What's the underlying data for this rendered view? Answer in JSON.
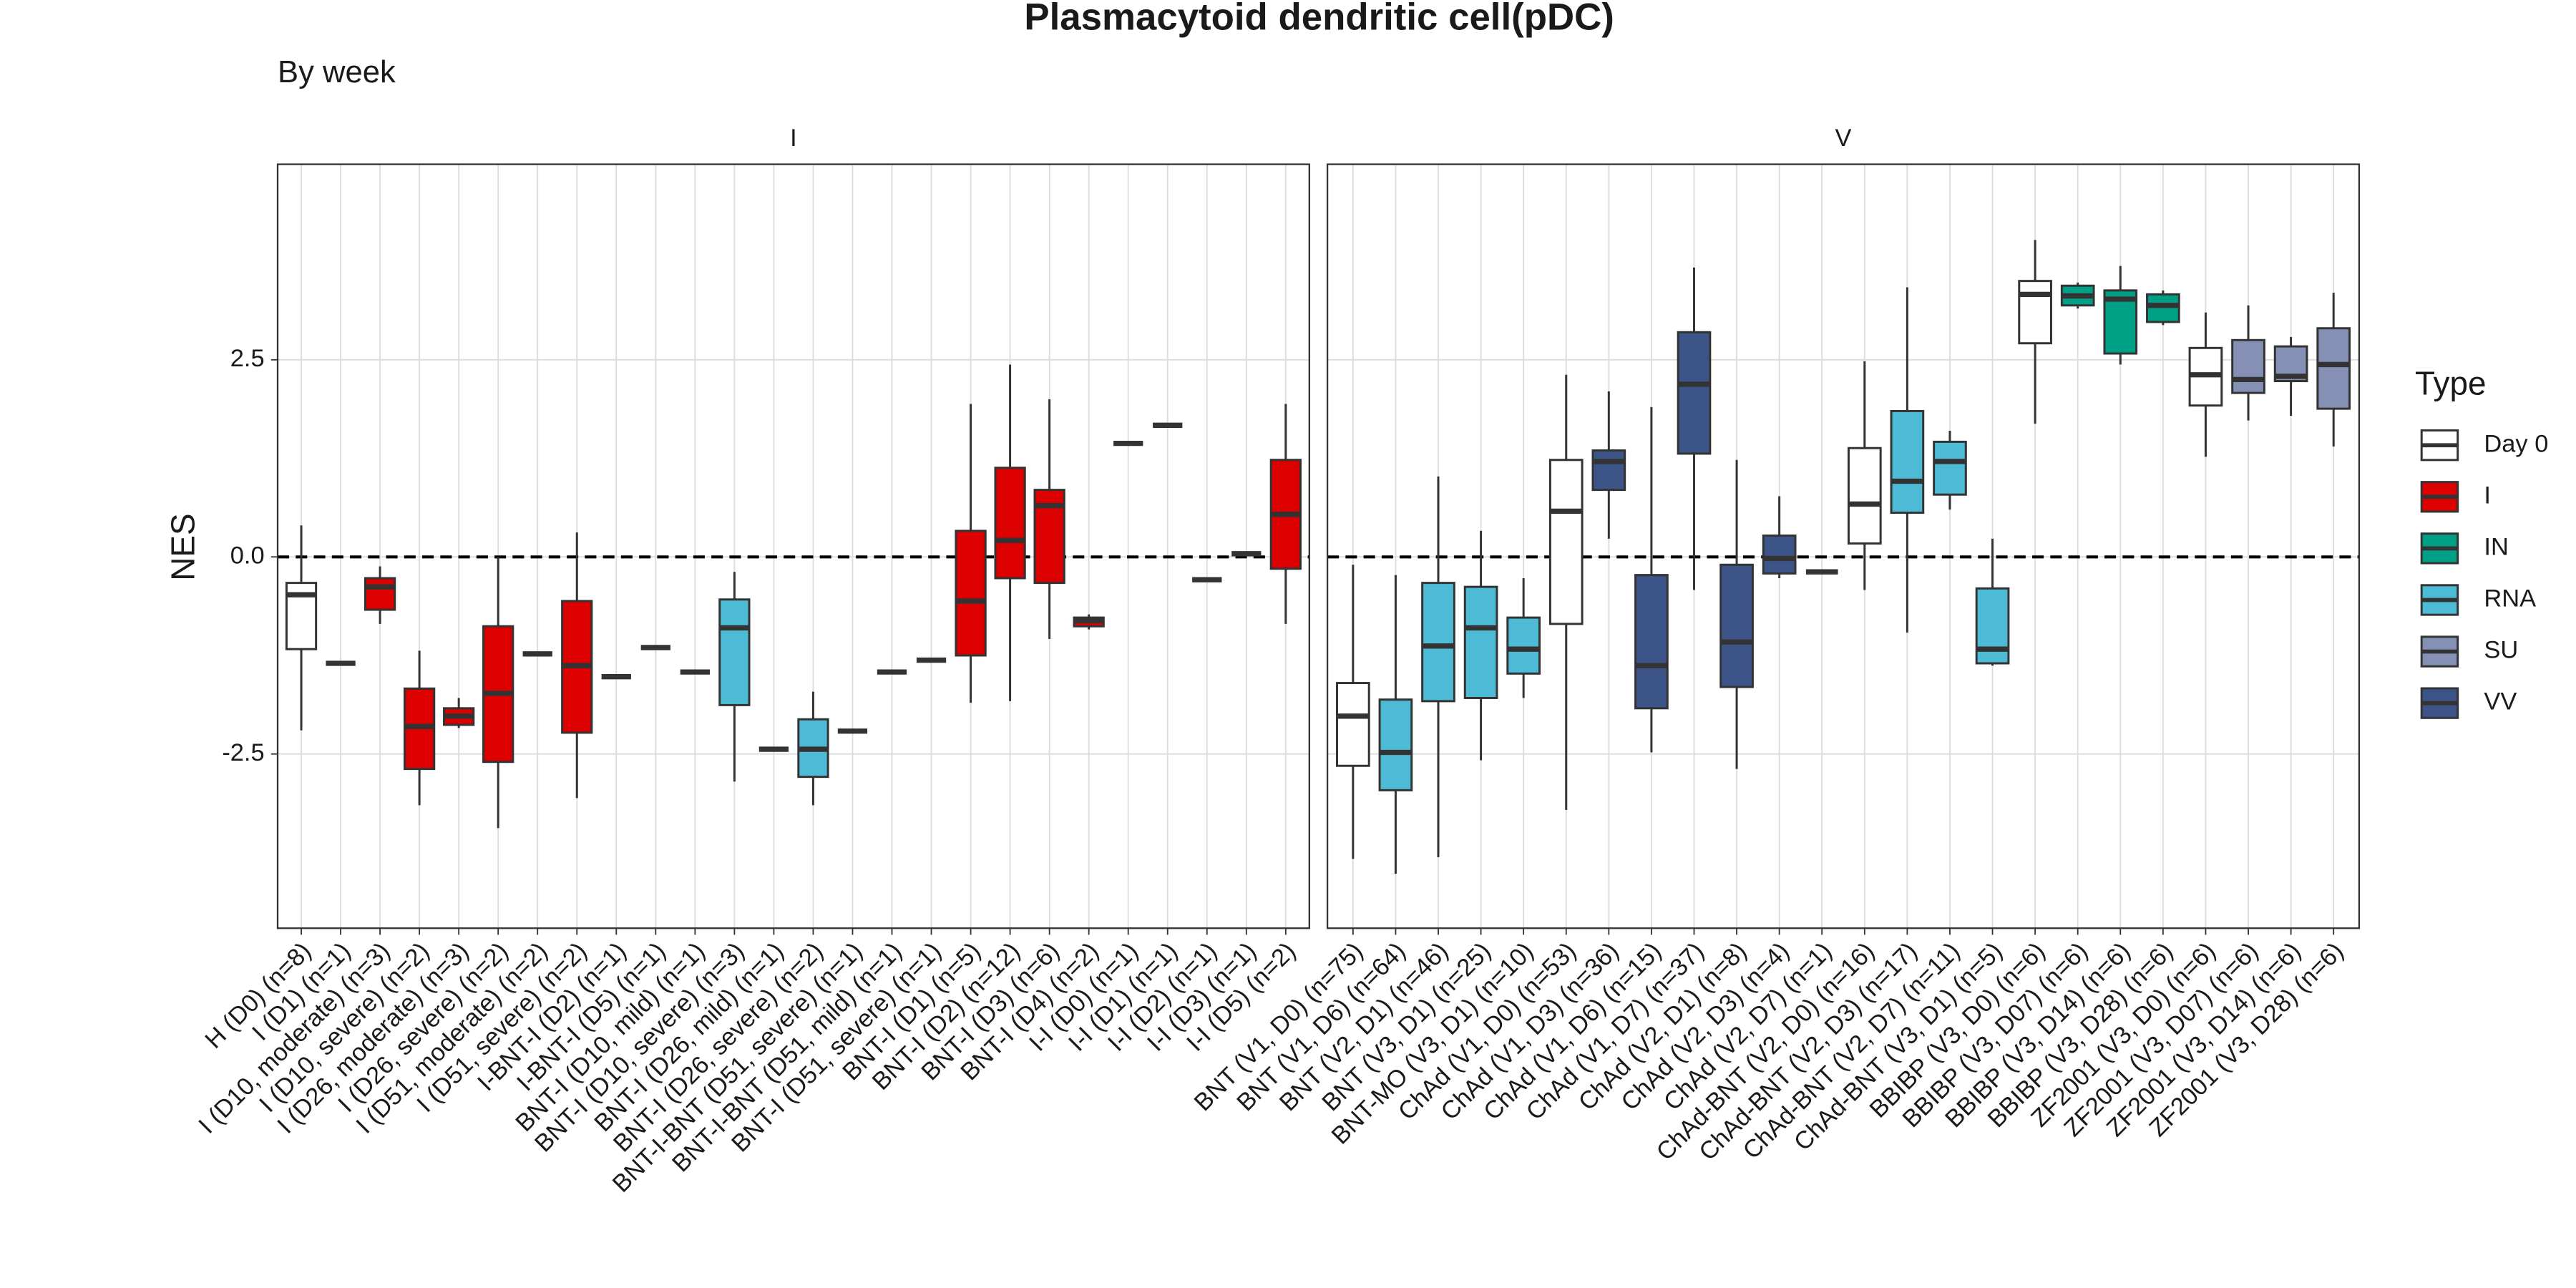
{
  "chart_data": {
    "type": "boxplot",
    "title": "Plasmacytoid dendritic cell(pDC)",
    "subtitle": "By week",
    "y_label": "NES",
    "legend_title": "Type",
    "legend": [
      {
        "name": "Day 0",
        "color": "#ffffff"
      },
      {
        "name": "I",
        "color": "#DC0000"
      },
      {
        "name": "IN",
        "color": "#00A087"
      },
      {
        "name": "RNA",
        "color": "#4DBBD5"
      },
      {
        "name": "SU",
        "color": "#8491B4"
      },
      {
        "name": "VV",
        "color": "#3C5488"
      }
    ],
    "ylim": [
      -4.71,
      4.98
    ],
    "yticks": [
      {
        "value": -2.5,
        "label": "-2.5"
      },
      {
        "value": 0,
        "label": "0.0"
      },
      {
        "value": 2.5,
        "label": "2.5"
      }
    ],
    "grid": true,
    "hline": 0,
    "facets": [
      {
        "label": "I",
        "categories": [
          "H (D0) (n=8)",
          "I (D1) (n=1)",
          "I (D10, moderate) (n=3)",
          "I (D10, severe) (n=2)",
          "I (D26, moderate) (n=3)",
          "I (D26, severe) (n=2)",
          "I (D51, moderate) (n=2)",
          "I (D51, severe) (n=2)",
          "I-BNT-I (D2) (n=1)",
          "I-BNT-I (D5) (n=1)",
          "BNT-I (D10, mild) (n=1)",
          "BNT-I (D10, severe) (n=3)",
          "BNT-I (D26, mild) (n=1)",
          "BNT-I (D26, severe) (n=2)",
          "BNT-I-BNT (D51, severe) (n=1)",
          "BNT-I-BNT (D51, mild) (n=1)",
          "BNT-I (D51, severe) (n=1)",
          "BNT-I (D1) (n=5)",
          "BNT-I (D2) (n=12)",
          "BNT-I (D3) (n=6)",
          "BNT-I (D4) (n=2)",
          "I-I (D0) (n=1)",
          "I-I (D1) (n=1)",
          "I-I (D2) (n=1)",
          "I-I (D3) (n=1)",
          "I-I (D5) (n=2)"
        ],
        "types": [
          "Day 0",
          "I",
          "I",
          "I",
          "I",
          "I",
          "I",
          "I",
          "I",
          "I",
          "RNA",
          "RNA",
          "RNA",
          "RNA",
          "RNA",
          "RNA",
          "RNA",
          "I",
          "I",
          "I",
          "I",
          "I",
          "I",
          "I",
          "I",
          "I"
        ],
        "boxes": [
          [
            -2.2,
            -1.17,
            -0.48,
            -0.33,
            0.4
          ],
          [
            -1.35,
            -1.35,
            -1.35,
            -1.35,
            -1.35
          ],
          [
            -0.85,
            -0.67,
            -0.38,
            -0.27,
            -0.12
          ],
          [
            -3.15,
            -2.69,
            -2.15,
            -1.67,
            -1.19
          ],
          [
            -2.17,
            -2.13,
            -2.02,
            -1.92,
            -1.79
          ],
          [
            -3.44,
            -2.6,
            -1.73,
            -0.88,
            0
          ],
          [
            -1.23,
            -1.23,
            -1.23,
            -1.23,
            -1.23
          ],
          [
            -3.06,
            -2.23,
            -1.38,
            -0.56,
            0.31
          ],
          [
            -1.52,
            -1.52,
            -1.52,
            -1.52,
            -1.52
          ],
          [
            -1.15,
            -1.15,
            -1.15,
            -1.15,
            -1.15
          ],
          [
            -1.46,
            -1.46,
            -1.46,
            -1.46,
            -1.46
          ],
          [
            -2.85,
            -1.88,
            -0.9,
            -0.54,
            -0.19
          ],
          [
            -2.44,
            -2.44,
            -2.44,
            -2.44,
            -2.44
          ],
          [
            -3.15,
            -2.79,
            -2.44,
            -2.06,
            -1.71
          ],
          [
            -2.21,
            -2.21,
            -2.21,
            -2.21,
            -2.21
          ],
          [
            -1.46,
            -1.46,
            -1.46,
            -1.46,
            -1.46
          ],
          [
            -1.31,
            -1.31,
            -1.31,
            -1.31,
            -1.31
          ],
          [
            -1.85,
            -1.25,
            -0.56,
            0.33,
            1.94
          ],
          [
            -1.83,
            -0.27,
            0.21,
            1.13,
            2.44
          ],
          [
            -1.04,
            -0.33,
            0.65,
            0.85,
            2.0
          ],
          [
            -0.92,
            -0.88,
            -0.81,
            -0.77,
            -0.73
          ],
          [
            1.44,
            1.44,
            1.44,
            1.44,
            1.44
          ],
          [
            1.67,
            1.67,
            1.67,
            1.67,
            1.67
          ],
          [
            -0.29,
            -0.29,
            -0.29,
            -0.29,
            -0.29
          ],
          [
            0.04,
            0.04,
            0.04,
            0.04,
            0.04
          ],
          [
            -0.85,
            -0.15,
            0.54,
            1.23,
            1.94
          ]
        ]
      },
      {
        "label": "V",
        "categories": [
          "BNT (V1, D0) (n=75)",
          "BNT (V1, D6) (n=64)",
          "BNT (V2, D1) (n=46)",
          "BNT (V3, D1) (n=25)",
          "BNT-MO (V3, D1) (n=10)",
          "ChAd (V1, D0) (n=53)",
          "ChAd (V1, D3) (n=36)",
          "ChAd (V1, D6) (n=15)",
          "ChAd (V1, D7) (n=37)",
          "ChAd (V2, D1) (n=8)",
          "ChAd (V2, D3) (n=4)",
          "ChAd (V2, D7) (n=1)",
          "ChAd-BNT (V2, D0) (n=16)",
          "ChAd-BNT (V2, D3) (n=17)",
          "ChAd-BNT (V2, D7) (n=11)",
          "ChAd-BNT (V3, D1) (n=5)",
          "BBIBP (V3, D0) (n=6)",
          "BBIBP (V3, D07) (n=6)",
          "BBIBP (V3, D14) (n=6)",
          "BBIBP (V3, D28) (n=6)",
          "ZF2001 (V3, D0) (n=6)",
          "ZF2001 (V3, D07) (n=6)",
          "ZF2001 (V3, D14) (n=6)",
          "ZF2001 (V3, D28) (n=6)"
        ],
        "types": [
          "Day 0",
          "RNA",
          "RNA",
          "RNA",
          "RNA",
          "Day 0",
          "VV",
          "VV",
          "VV",
          "VV",
          "VV",
          "VV",
          "Day 0",
          "RNA",
          "RNA",
          "RNA",
          "Day 0",
          "IN",
          "IN",
          "IN",
          "Day 0",
          "SU",
          "SU",
          "SU"
        ],
        "boxes": [
          [
            -3.83,
            -2.65,
            -2.02,
            -1.6,
            -0.1
          ],
          [
            -4.02,
            -2.96,
            -2.48,
            -1.81,
            -0.23
          ],
          [
            -3.81,
            -1.83,
            -1.13,
            -0.33,
            1.02
          ],
          [
            -2.58,
            -1.79,
            -0.9,
            -0.38,
            0.33
          ],
          [
            -1.79,
            -1.48,
            -1.17,
            -0.77,
            -0.27
          ],
          [
            -3.21,
            -0.85,
            0.58,
            1.23,
            2.31
          ],
          [
            0.23,
            0.85,
            1.21,
            1.35,
            2.1
          ],
          [
            -2.48,
            -1.92,
            -1.38,
            -0.23,
            1.9
          ],
          [
            -0.42,
            1.31,
            2.19,
            2.85,
            3.67
          ],
          [
            -2.69,
            -1.65,
            -1.08,
            -0.1,
            1.23
          ],
          [
            -0.27,
            -0.21,
            -0.02,
            0.27,
            0.77
          ],
          [
            -0.19,
            -0.19,
            -0.19,
            -0.19,
            -0.19
          ],
          [
            -0.42,
            0.17,
            0.67,
            1.38,
            2.48
          ],
          [
            -0.96,
            0.56,
            0.96,
            1.85,
            3.42
          ],
          [
            0.6,
            0.79,
            1.21,
            1.46,
            1.6
          ],
          [
            -1.38,
            -1.35,
            -1.17,
            -0.4,
            0.23
          ],
          [
            1.69,
            2.71,
            3.33,
            3.5,
            4.02
          ],
          [
            3.15,
            3.19,
            3.31,
            3.44,
            3.48
          ],
          [
            2.44,
            2.58,
            3.27,
            3.38,
            3.69
          ],
          [
            2.94,
            2.98,
            3.19,
            3.33,
            3.38
          ],
          [
            1.27,
            1.92,
            2.31,
            2.65,
            3.1
          ],
          [
            1.73,
            2.08,
            2.25,
            2.75,
            3.19
          ],
          [
            1.79,
            2.23,
            2.29,
            2.67,
            2.79
          ],
          [
            1.4,
            1.88,
            2.44,
            2.9,
            3.35
          ]
        ]
      }
    ]
  }
}
